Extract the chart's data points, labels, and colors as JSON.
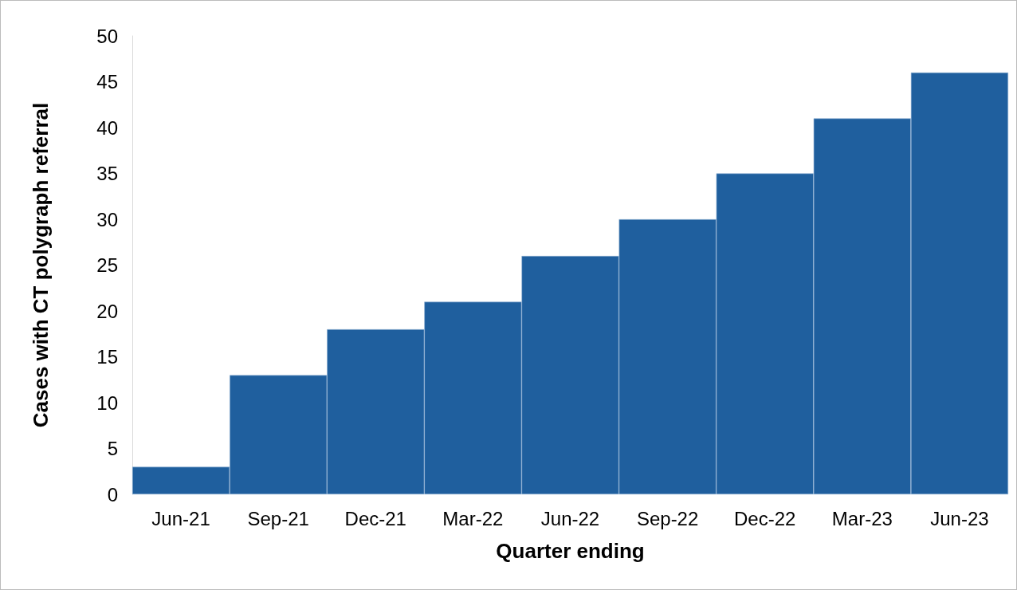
{
  "chart_data": {
    "type": "bar",
    "xlabel": "Quarter ending",
    "ylabel": "Cases with CT polygraph referral",
    "categories": [
      "Jun-21",
      "Sep-21",
      "Dec-21",
      "Mar-22",
      "Jun-22",
      "Sep-22",
      "Dec-22",
      "Mar-23",
      "Jun-23"
    ],
    "values": [
      3,
      13,
      18,
      21,
      26,
      30,
      35,
      41,
      46
    ],
    "color": "#1f5f9e",
    "ylim": [
      0,
      50
    ],
    "yticks": [
      0,
      5,
      10,
      15,
      20,
      25,
      30,
      35,
      40,
      45,
      50
    ],
    "grid": false
  }
}
